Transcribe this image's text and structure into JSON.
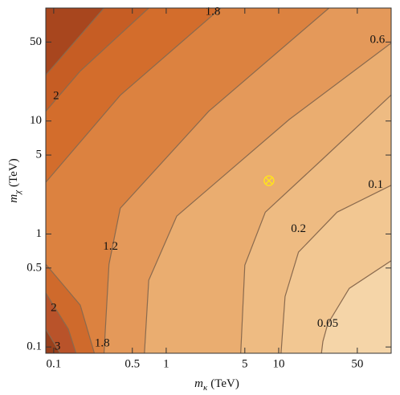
{
  "chart_data": {
    "type": "contour",
    "xlabel": {
      "symbol": "m",
      "subscript": "κ",
      "unit": "(TeV)"
    },
    "ylabel": {
      "symbol": "m",
      "subscript": "χ",
      "unit": "(TeV)"
    },
    "xscale": "log",
    "yscale": "log",
    "xlim": [
      0.085,
      100
    ],
    "ylim": [
      0.088,
      100
    ],
    "xticks": [
      0.1,
      0.5,
      1,
      5,
      10,
      50
    ],
    "yticks": [
      0.1,
      0.5,
      1,
      5,
      10,
      50
    ],
    "background": "#f5d5a8",
    "line_color": "#8a6a4e",
    "contours": [
      {
        "label": 0.05,
        "fill": "#f2c792",
        "x": [
          100,
          42.4,
          27.3,
          24.7,
          24
        ],
        "y": [
          0.58,
          0.33,
          0.16,
          0.112,
          0.088
        ],
        "label_at": [
          27.3,
          0.16
        ]
      },
      {
        "label": 0.1,
        "fill": "#eebb82",
        "x": [
          100,
          33,
          15,
          11.4,
          10.5
        ],
        "y": [
          2.7,
          1.56,
          0.69,
          0.28,
          0.088
        ],
        "label_at": [
          85,
          2.7
        ]
      },
      {
        "label": 0.2,
        "fill": "#eaad70",
        "x": [
          100,
          24,
          7.6,
          5.0,
          4.6
        ],
        "y": [
          17,
          4.5,
          1.56,
          0.53,
          0.088
        ],
        "label_at": [
          15,
          1.1
        ]
      },
      {
        "label": 0.6,
        "fill": "#e4995a",
        "x": [
          100,
          12.4,
          1.24,
          0.7,
          0.64
        ],
        "y": [
          49,
          10.3,
          1.44,
          0.39,
          0.088
        ],
        "label_at": [
          88,
          52
        ]
      },
      {
        "label": 1.2,
        "fill": "#dc8240",
        "x": [
          28,
          2.39,
          0.39,
          0.31,
          0.28
        ],
        "y": [
          100,
          12.2,
          1.69,
          0.54,
          0.088
        ],
        "label_at": [
          0.32,
          0.77
        ]
      },
      {
        "label": 1.8,
        "fill": "#d36d2c",
        "x": [
          3.06,
          0.39,
          0.085
        ],
        "y": [
          100,
          16.9,
          2.87
        ],
        "label_at": [
          2.6,
          92
        ]
      },
      {
        "label": 2,
        "fill": "#c65d24",
        "x": [
          0.7,
          0.172,
          0.085
        ],
        "y": [
          100,
          27.7,
          12.2
        ],
        "label_at": [
          0.105,
          16.5
        ]
      },
      {
        "label": null,
        "fill": "#a8461e",
        "x": [
          0.28,
          0.085
        ],
        "y": [
          100,
          25.5
        ],
        "label_at": null
      },
      {
        "label": 1.8,
        "fill": "#cf6a2c",
        "x": [
          0.085,
          0.172,
          0.23
        ],
        "y": [
          0.54,
          0.235,
          0.088
        ],
        "label_at": [
          0.27,
          0.107
        ]
      },
      {
        "label": 2,
        "fill": "#b9532a",
        "x": [
          0.085,
          0.135,
          0.158
        ],
        "y": [
          0.3,
          0.144,
          0.088
        ],
        "label_at": [
          0.1,
          0.22
        ]
      },
      {
        "label": 3,
        "fill": "#99401c",
        "x": [
          0.085,
          0.114
        ],
        "y": [
          0.144,
          0.088
        ],
        "label_at": [
          0.108,
          0.1
        ]
      }
    ],
    "marker": {
      "x": 8.2,
      "y": 2.96,
      "color": "#ffe020"
    }
  }
}
